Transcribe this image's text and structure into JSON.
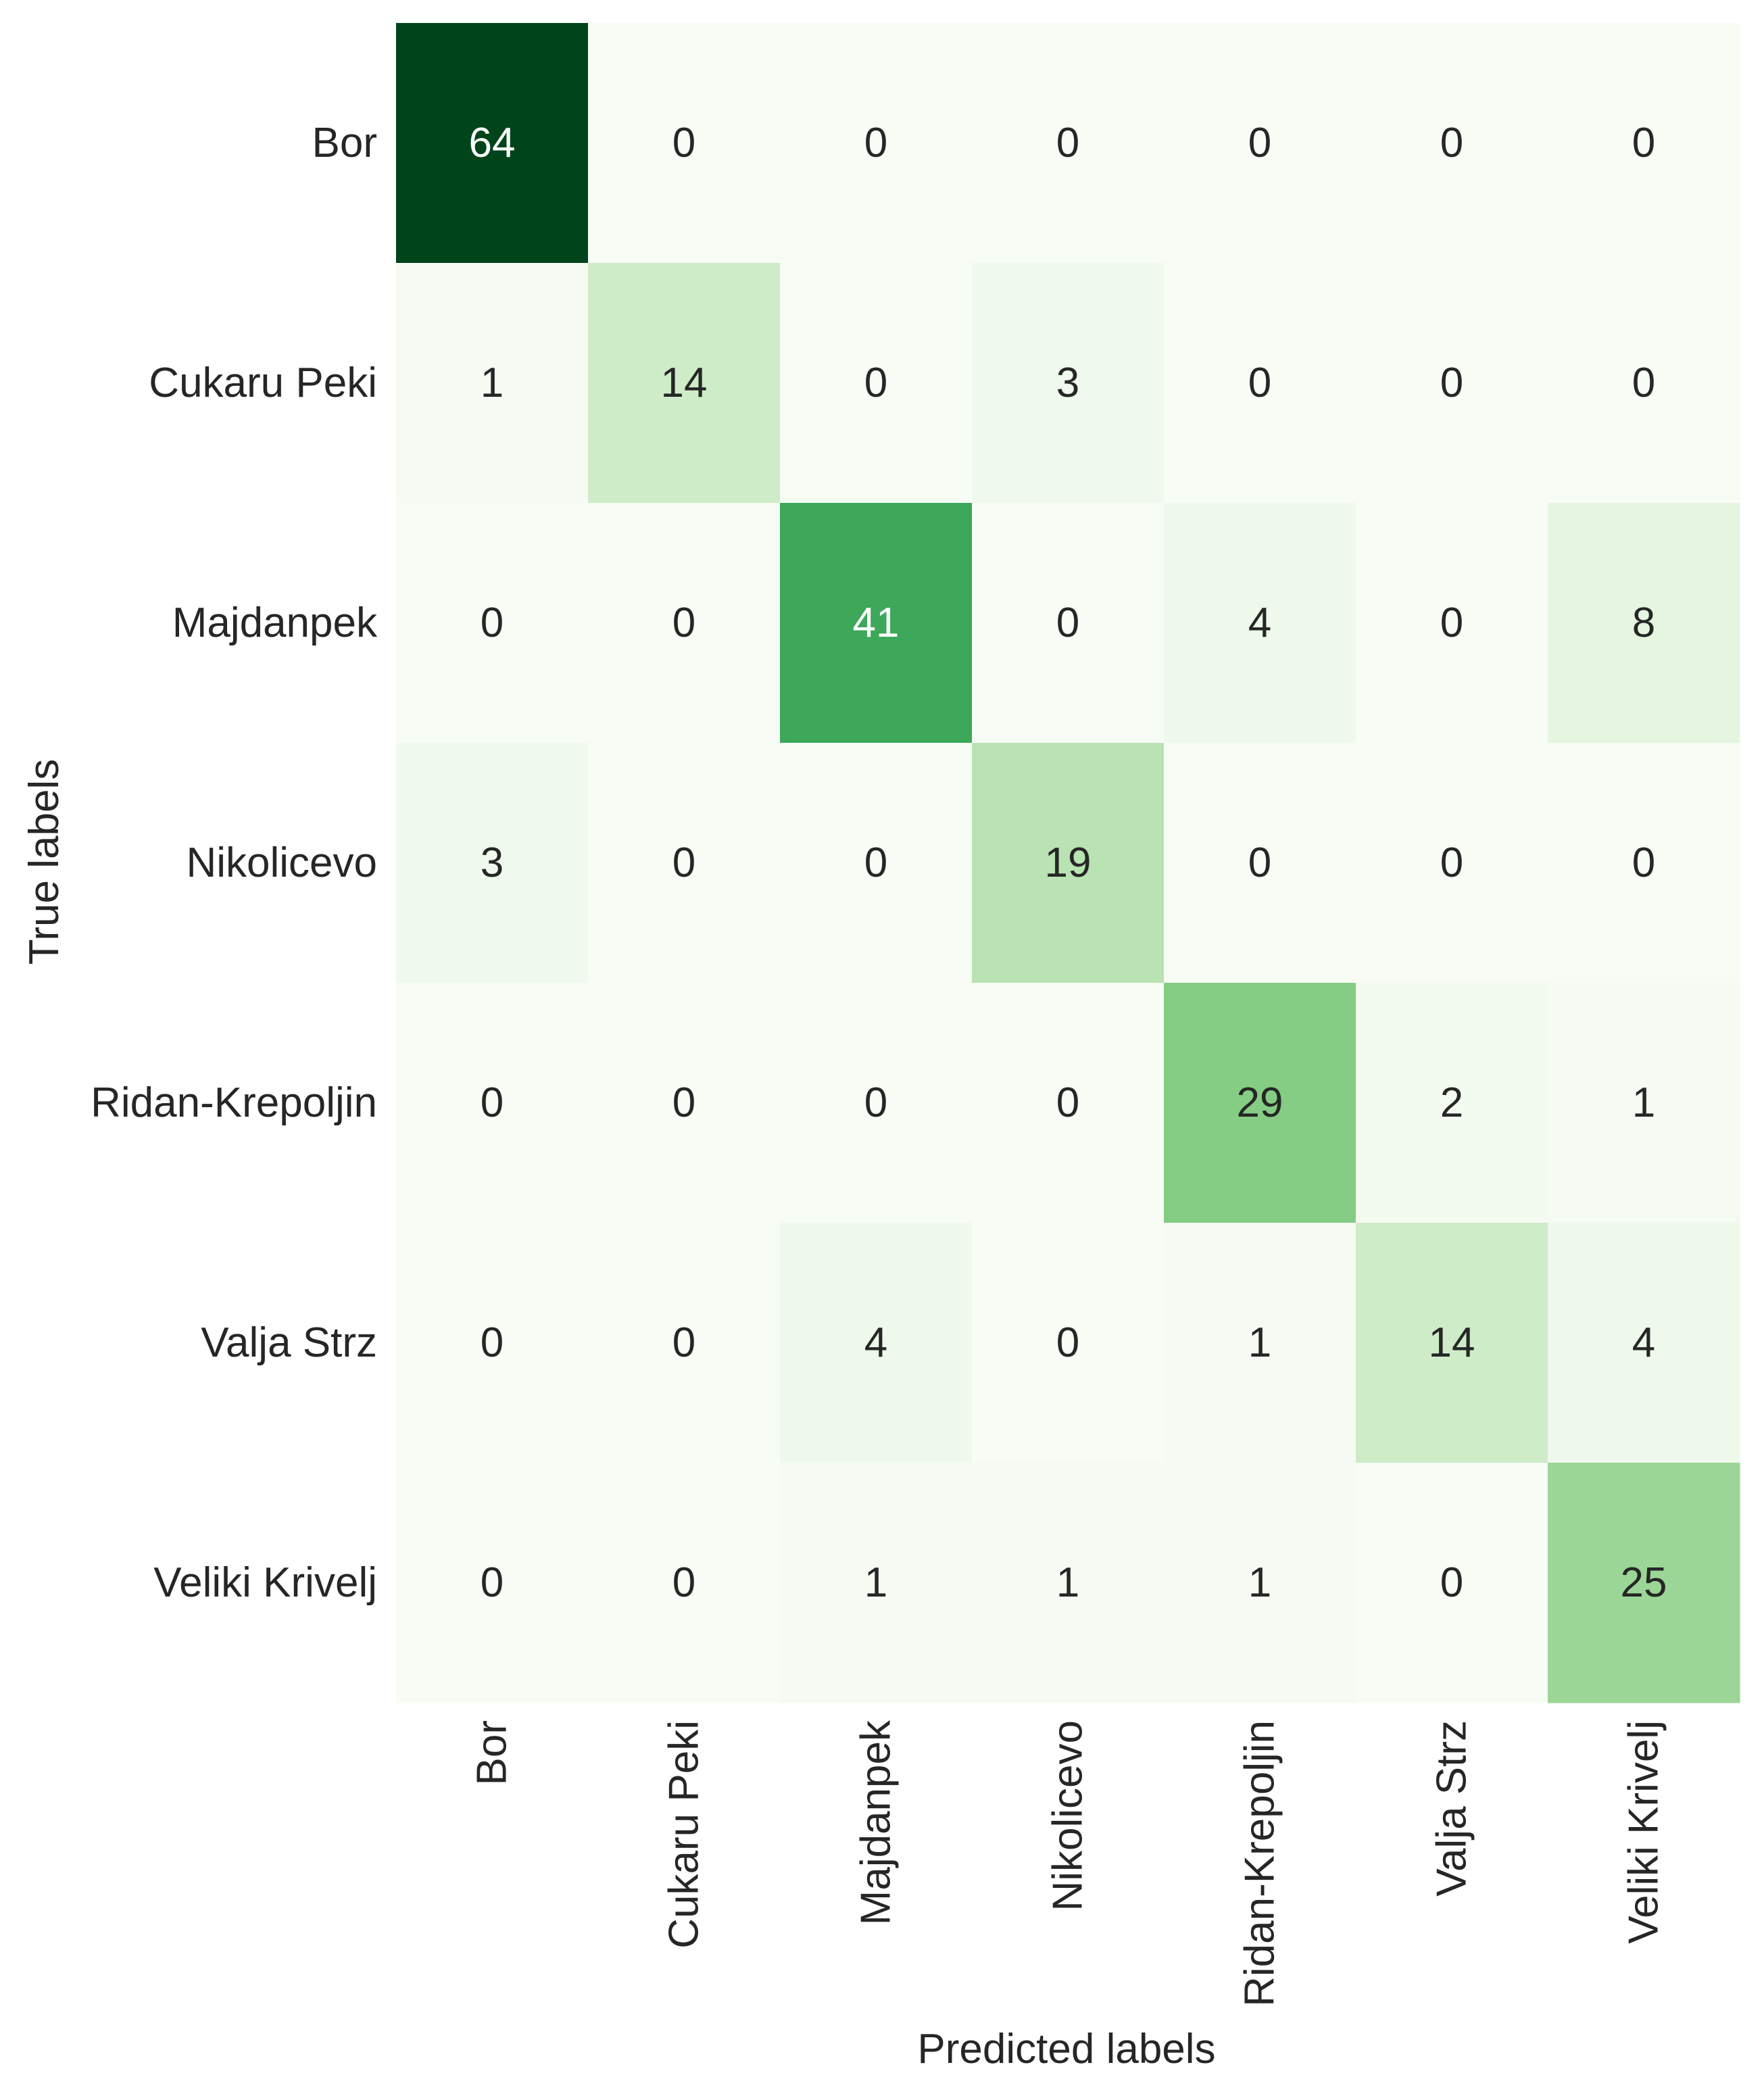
{
  "chart_data": {
    "type": "heatmap",
    "title": "",
    "xlabel": "Predicted labels",
    "ylabel": "True labels",
    "x_categories": [
      "Bor",
      "Cukaru Peki",
      "Majdanpek",
      "Nikolicevo",
      "Ridan-Krepoljin",
      "Valja Strz",
      "Veliki Krivelj"
    ],
    "y_categories": [
      "Bor",
      "Cukaru Peki",
      "Majdanpek",
      "Nikolicevo",
      "Ridan-Krepoljin",
      "Valja Strz ",
      "Veliki Krivelj"
    ],
    "values": [
      [
        64,
        0,
        0,
        0,
        0,
        0,
        0
      ],
      [
        1,
        14,
        0,
        3,
        0,
        0,
        0
      ],
      [
        0,
        0,
        41,
        0,
        4,
        0,
        8
      ],
      [
        3,
        0,
        0,
        19,
        0,
        0,
        0
      ],
      [
        0,
        0,
        0,
        0,
        29,
        2,
        1
      ],
      [
        0,
        0,
        4,
        0,
        1,
        14,
        4
      ],
      [
        0,
        0,
        1,
        1,
        1,
        0,
        25
      ]
    ],
    "colormap": "Greens",
    "vmin": 0,
    "vmax": 64,
    "colorbar": false,
    "annotate": true,
    "grid": false
  }
}
